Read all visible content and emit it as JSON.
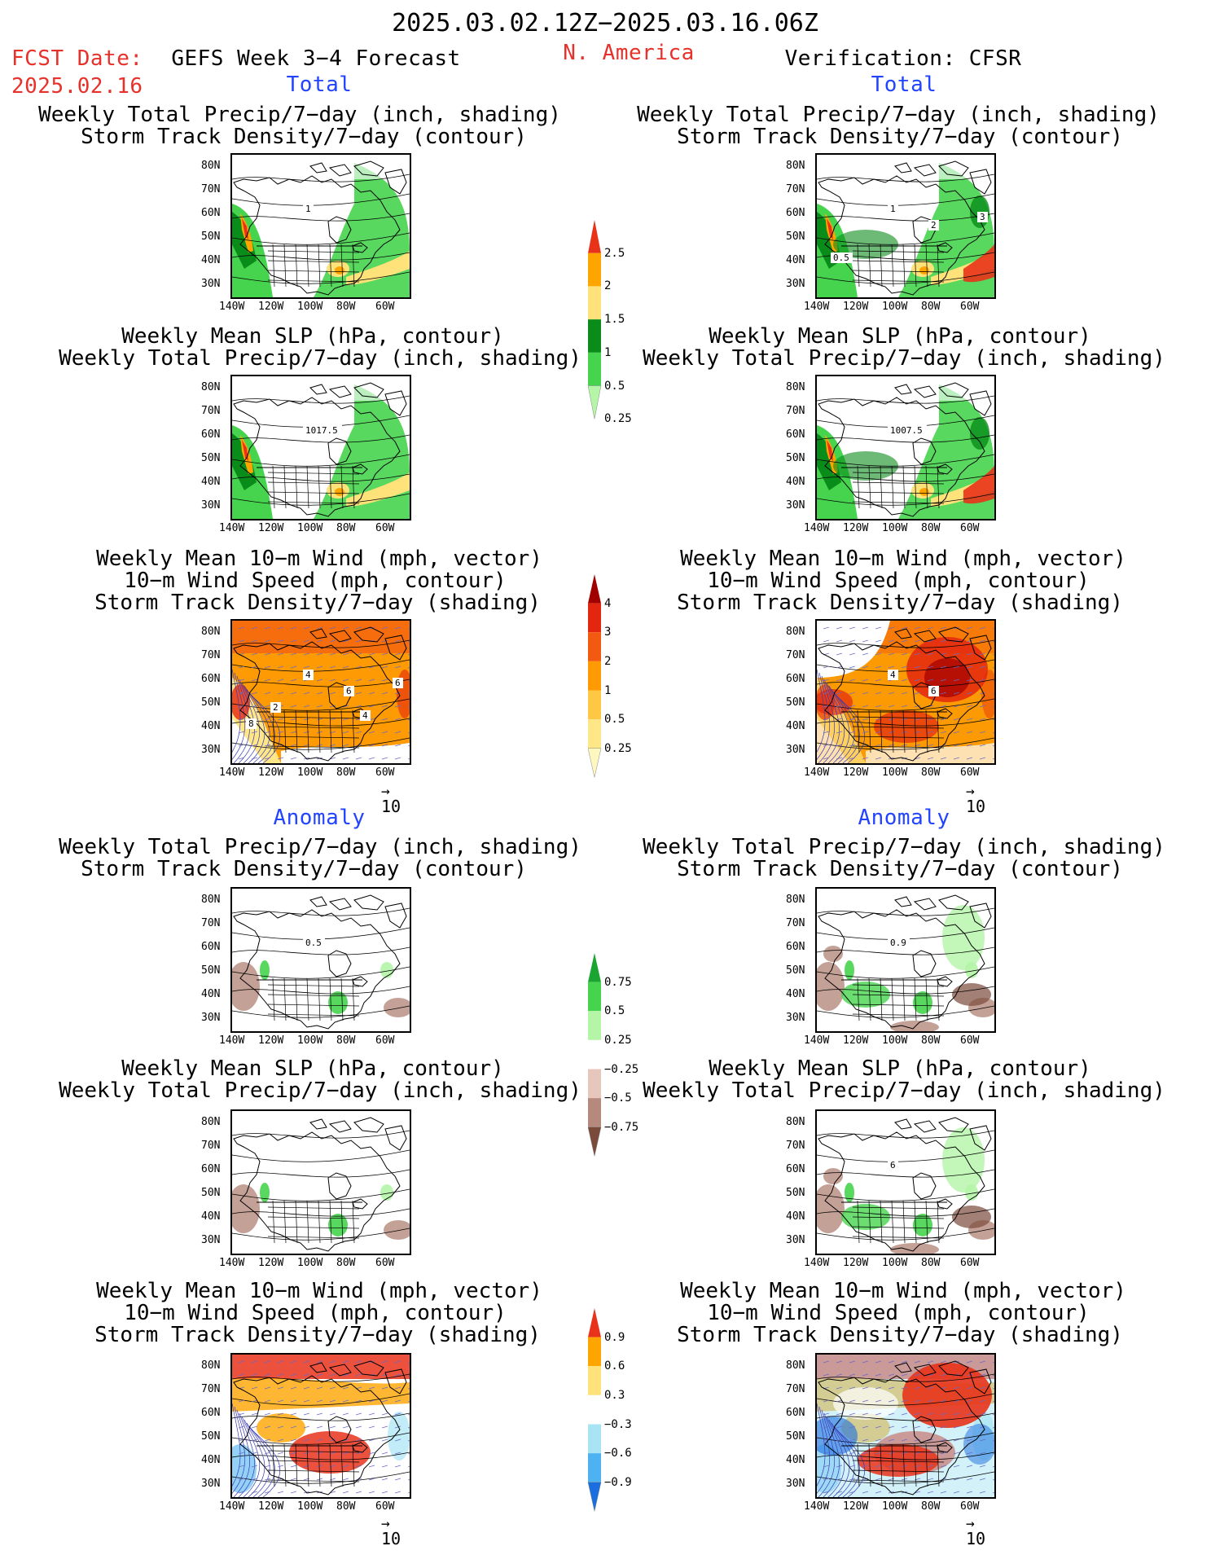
{
  "header": {
    "date_range": "2025.03.02.12Z−2025.03.16.06Z",
    "fcst_date_label": "FCST Date:",
    "fcst_date_value": "2025.02.16",
    "forecast_name": "GEFS Week 3−4 Forecast",
    "region": "N. America",
    "verification": "Verification: CFSR"
  },
  "sections": {
    "total": "Total",
    "anomaly": "Anomaly"
  },
  "panel_titles": {
    "precip_storm": [
      "Weekly Total Precip/7−day (inch, shading)",
      "Storm Track Density/7−day (contour)"
    ],
    "slp_precip": [
      "Weekly Mean SLP (hPa, contour)",
      "Weekly Total Precip/7−day (inch, shading)"
    ],
    "wind_storm": [
      "Weekly Mean 10−m Wind (mph, vector)",
      "10−m Wind Speed (mph, contour)",
      "Storm Track Density/7−day (shading)"
    ]
  },
  "axis": {
    "lat_labels": [
      "80N",
      "70N",
      "60N",
      "50N",
      "40N",
      "30N"
    ],
    "lon_labels": [
      "140W",
      "120W",
      "100W",
      "80W",
      "60W"
    ]
  },
  "vector_ref": "10",
  "map_annotations": {
    "fc_total_precip": [
      "1"
    ],
    "ob_total_precip": [
      "1",
      "2",
      "3",
      "0.5"
    ],
    "fc_total_slp": [
      "1017.5"
    ],
    "ob_total_slp": [
      "1007.5"
    ],
    "fc_total_wind": [
      "4",
      "6",
      "6",
      "8",
      "2",
      "4"
    ],
    "ob_total_wind": [
      "4",
      "6"
    ],
    "fc_anom_precip": [
      "0.5"
    ],
    "ob_anom_precip": [
      "0.9"
    ],
    "ob_anom_slp": [
      "6"
    ]
  },
  "colorbars": {
    "precip_total": {
      "labels": [
        "2.5",
        "2",
        "1.5",
        "1",
        "0.5",
        "0.25"
      ],
      "colors": [
        "#e8331a",
        "#ffa500",
        "#ffe27a",
        "#0a8c1a",
        "#46d44e",
        "#b4f5a8"
      ]
    },
    "storm_total": {
      "labels": [
        "4",
        "3",
        "2",
        "1",
        "0.5",
        "0.25"
      ],
      "colors": [
        "#a00000",
        "#e3260f",
        "#f25a12",
        "#fd9a04",
        "#ffc844",
        "#ffe788",
        "#fff7c0"
      ]
    },
    "precip_anom": {
      "labels": [
        "0.75",
        "0.5",
        "0.25",
        "−0.25",
        "−0.5",
        "−0.75"
      ],
      "colors": [
        "#1aa532",
        "#46d44e",
        "#b4f5a8",
        "#ffffff",
        "#e7c6bb",
        "#b58a7c",
        "#7a4a3a"
      ]
    },
    "storm_anom": {
      "labels": [
        "0.9",
        "0.6",
        "0.3",
        "−0.3",
        "−0.6",
        "−0.9"
      ],
      "colors": [
        "#e8331a",
        "#ffa500",
        "#ffe27a",
        "#ffffff",
        "#a8e4f4",
        "#4cb2f2",
        "#1a6ee0"
      ]
    }
  },
  "colors": {
    "accent_red": "#e8312a",
    "accent_blue": "#2244ff"
  }
}
